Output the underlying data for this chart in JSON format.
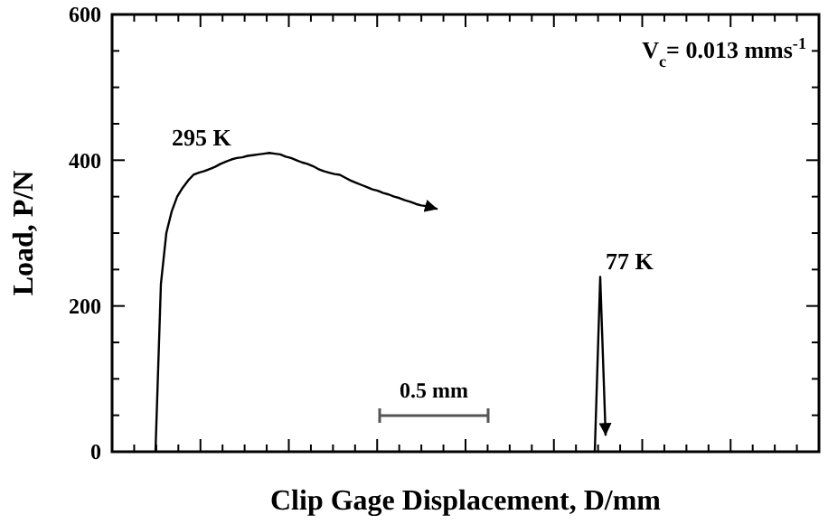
{
  "chart_data": {
    "type": "line",
    "xlabel": "Clip Gage Displacement, D/mm",
    "ylabel": "Load, P/N",
    "categories": [
      null,
      null,
      null,
      null,
      null,
      null,
      null,
      null,
      null,
      null,
      null,
      null,
      null,
      null,
      null,
      null,
      null,
      null,
      null,
      null,
      null,
      null,
      null,
      null,
      null,
      null,
      null,
      null,
      null,
      null,
      null,
      null,
      null,
      null,
      null,
      null,
      null,
      null,
      null,
      null,
      null,
      null,
      null,
      null,
      null,
      null,
      null,
      null,
      null,
      null,
      null,
      null,
      null,
      null,
      null,
      null,
      null,
      null,
      null,
      null,
      null,
      null,
      null,
      null,
      null,
      null,
      null,
      null,
      null,
      null,
      null,
      null,
      null,
      null,
      null,
      null,
      null,
      null,
      null,
      null,
      null,
      null,
      null,
      null
    ],
    "series": [
      {
        "name": "295 K",
        "color": "#000000",
        "values": [
          0,
          230,
          300,
          330,
          350,
          362,
          372,
          380,
          383,
          385,
          388,
          391,
          395,
          398,
          401,
          403,
          404,
          406,
          407,
          408,
          409,
          410,
          409,
          408,
          405,
          403,
          400,
          397,
          395,
          392,
          388,
          385,
          383,
          381,
          380,
          376,
          372,
          369,
          366,
          363,
          360,
          358,
          355,
          353,
          350,
          348,
          345,
          343,
          340,
          338,
          337,
          335,
          333,
          null,
          null,
          null,
          null,
          null,
          null,
          null,
          null,
          null,
          null,
          null,
          null,
          null,
          null,
          null,
          null,
          null,
          null,
          null,
          null,
          null,
          null,
          null,
          null,
          null,
          null,
          null,
          null,
          null,
          null,
          null
        ]
      },
      {
        "name": "77 K",
        "color": "#000000",
        "values": [
          null,
          null,
          null,
          null,
          null,
          null,
          null,
          null,
          null,
          null,
          null,
          null,
          null,
          null,
          null,
          null,
          null,
          null,
          null,
          null,
          null,
          null,
          null,
          null,
          null,
          null,
          null,
          null,
          null,
          null,
          null,
          null,
          null,
          null,
          null,
          null,
          null,
          null,
          null,
          null,
          null,
          null,
          null,
          null,
          null,
          null,
          null,
          null,
          null,
          null,
          null,
          null,
          null,
          null,
          null,
          null,
          null,
          null,
          null,
          null,
          null,
          null,
          null,
          null,
          null,
          null,
          null,
          null,
          null,
          null,
          null,
          null,
          null,
          null,
          null,
          null,
          null,
          null,
          null,
          null,
          null,
          0,
          240,
          22
        ]
      }
    ],
    "ylim": [
      0,
      600
    ],
    "yticks": [
      0,
      200,
      400,
      600
    ],
    "annotations": [
      "V$_{c}$= 0.013 mms$^{-1}$",
      "0.5 mm"
    ],
    "grid": false,
    "marker": "none",
    "line_style": "solid"
  }
}
